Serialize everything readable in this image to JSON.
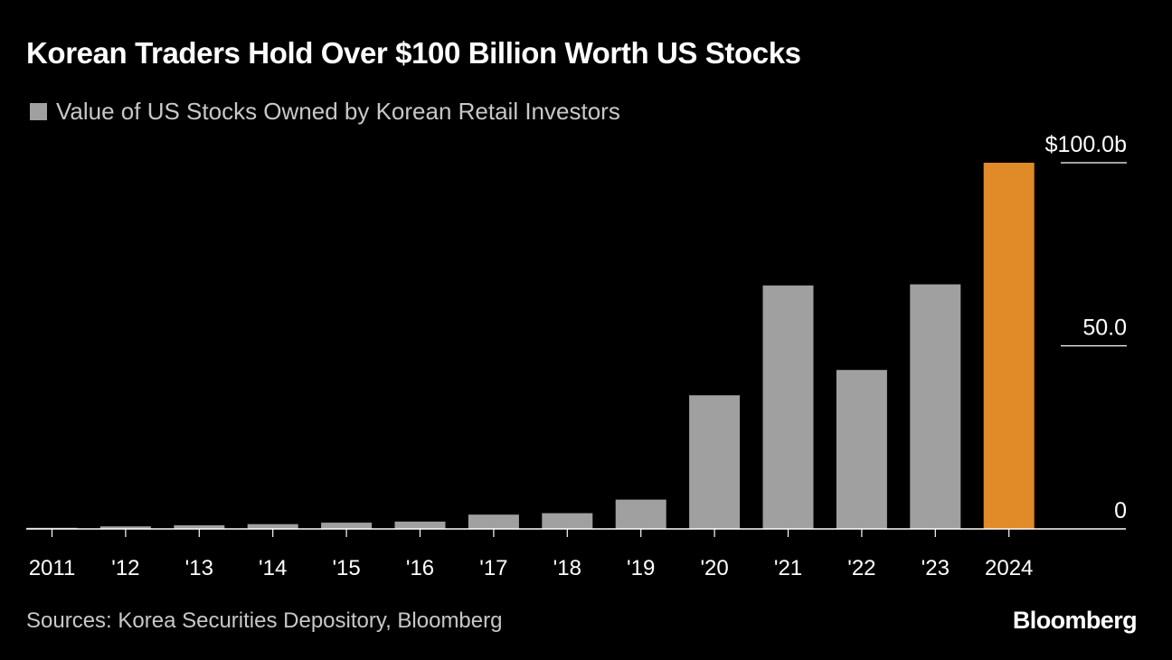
{
  "title": "Korean Traders Hold Over $100 Billion Worth US Stocks",
  "source": "Sources: Korea Securities Depository, Bloomberg",
  "logo": "Bloomberg",
  "colors": {
    "background": "#000000",
    "bar": "#a0a0a0",
    "highlight": "#e08b27",
    "axis": "#ffffff",
    "text": "#ffffff",
    "muted_text": "#c8c8c8"
  },
  "chart_data": {
    "type": "bar",
    "legend": [
      {
        "label": "Value of US Stocks Owned by Korean Retail Investors",
        "color": "#a0a0a0"
      }
    ],
    "categories": [
      "2011",
      "'12",
      "'13",
      "'14",
      "'15",
      "'16",
      "'17",
      "'18",
      "'19",
      "'20",
      "'21",
      "'22",
      "'23",
      "2024"
    ],
    "series": [
      {
        "name": "Value of US Stocks Owned by Korean Retail Investors",
        "values": [
          0.3,
          0.7,
          1.0,
          1.3,
          1.7,
          2.0,
          3.9,
          4.3,
          8.0,
          36.5,
          66.5,
          43.4,
          66.8,
          100.0
        ]
      }
    ],
    "highlight_index": 13,
    "ylim": [
      0,
      100
    ],
    "yticks": [
      {
        "value": 100,
        "label": "$100.0b"
      },
      {
        "value": 50,
        "label": "50.0"
      },
      {
        "value": 0,
        "label": "0"
      }
    ],
    "y_axis_position": "right",
    "grid": false,
    "legend_position": "top-left"
  }
}
